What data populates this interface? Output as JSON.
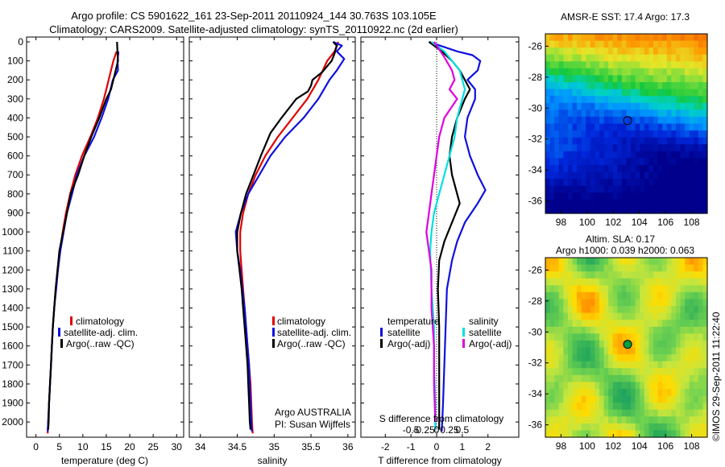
{
  "titles": {
    "line1": "Argo profile: CS 5901622_161 23-Sep-2011 20110924_144 30.763S 103.105E",
    "line2": "Climatology: CARS2009. Satellite-adjusted climatology: synTS_20110922.nc (2d earlier)"
  },
  "colors": {
    "climatology": "#e00000",
    "satellite": "#1010e0",
    "argo": "#000000",
    "sat_s_diff": "#00e0e0",
    "argo_s_diff": "#e000e0"
  },
  "depth_axis": {
    "ticks": [
      0,
      100,
      200,
      300,
      400,
      500,
      600,
      700,
      800,
      900,
      1000,
      1100,
      1200,
      1300,
      1400,
      1500,
      1600,
      1700,
      1800,
      1900,
      2000
    ],
    "ylim": [
      0,
      2080
    ]
  },
  "temperature_panel": {
    "xlabel": "temperature (deg C)",
    "xticks": [
      0,
      5,
      10,
      15,
      20,
      25,
      30
    ],
    "xlim": [
      -2,
      31.5
    ],
    "legend": [
      "climatology",
      "satellite-adj. clim.",
      "Argo(..raw -QC)"
    ]
  },
  "salinity_panel": {
    "xlabel": "salinity",
    "xticks": [
      34,
      34.5,
      35,
      35.5,
      36
    ],
    "xtick_labels": [
      "34",
      "34.5",
      "35",
      "35.5",
      "36"
    ],
    "xlim": [
      33.85,
      36.1
    ],
    "legend": [
      "climatology",
      "satellite-adj. clim.",
      "Argo(..raw -QC)"
    ],
    "credit1": "Argo AUSTRALIA",
    "credit2": "PI: Susan Wijffels"
  },
  "difference_panel": {
    "xlabel": "T difference from climatology",
    "xlabel_top": "S difference from climatology",
    "t_xticks": [
      -2,
      -1,
      0,
      1,
      2
    ],
    "t_xtick_labels": [
      "-2",
      "-1",
      "0",
      "1",
      "2"
    ],
    "s_xtick_labels": [
      "-0.5",
      "-0.25",
      "0",
      "0.25",
      "0.5"
    ],
    "xlim": [
      -2.95,
      3.2
    ],
    "legend_temperature_header": "temperature",
    "legend_salinity_header": "salinity",
    "legend_items": [
      "satellite",
      "Argo(-adj)",
      "satellite",
      "Argo(-adj)"
    ]
  },
  "sst_map": {
    "title": "AMSR-E SST: 17.4 Argo: 17.3",
    "yticks": [
      "-26",
      "-28",
      "-30",
      "-32",
      "-34",
      "-36"
    ],
    "xticks": [
      "98",
      "100",
      "102",
      "104",
      "106",
      "108"
    ],
    "float_lon": 103.1,
    "float_lat": -30.8
  },
  "sla_map": {
    "title1": "Altim. SLA: 0.17",
    "title2": "Argo h1000: 0.039 h2000: 0.063",
    "yticks": [
      "-26",
      "-28",
      "-30",
      "-32",
      "-34",
      "-36"
    ],
    "xticks": [
      "98",
      "100",
      "102",
      "104",
      "106",
      "108"
    ],
    "float_lon": 103.1,
    "float_lat": -30.8
  },
  "timestamp": "©IMOS 29-Sep-2011 11:22:40",
  "chart_data": [
    {
      "type": "line",
      "name_ref": "temperature_panel",
      "series": [
        {
          "key": "climatology",
          "points": [
            [
              17.2,
              50
            ],
            [
              16.5,
              100
            ],
            [
              15.5,
              200
            ],
            [
              14.5,
              300
            ],
            [
              13.2,
              400
            ],
            [
              11.6,
              500
            ],
            [
              9.8,
              600
            ],
            [
              8.4,
              700
            ],
            [
              7.3,
              800
            ],
            [
              6.4,
              900
            ],
            [
              5.7,
              1000
            ],
            [
              5.1,
              1100
            ],
            [
              4.6,
              1200
            ],
            [
              4.2,
              1300
            ],
            [
              3.9,
              1400
            ],
            [
              3.6,
              1500
            ],
            [
              3.4,
              1600
            ],
            [
              3.2,
              1700
            ],
            [
              3.0,
              1800
            ],
            [
              2.8,
              1900
            ],
            [
              2.6,
              2000
            ],
            [
              2.5,
              2060
            ]
          ]
        },
        {
          "key": "satellite",
          "points": [
            [
              17.6,
              50
            ],
            [
              17.4,
              100
            ],
            [
              17.5,
              150
            ],
            [
              16.4,
              200
            ],
            [
              15.4,
              300
            ],
            [
              14.0,
              400
            ],
            [
              12.4,
              500
            ],
            [
              10.3,
              600
            ],
            [
              8.7,
              700
            ],
            [
              7.7,
              800
            ],
            [
              6.6,
              900
            ],
            [
              5.9,
              1000
            ],
            [
              5.2,
              1100
            ],
            [
              4.7,
              1200
            ],
            [
              4.3,
              1300
            ],
            [
              3.9,
              1400
            ],
            [
              3.6,
              1500
            ],
            [
              3.4,
              1600
            ],
            [
              3.2,
              1700
            ],
            [
              3.0,
              1800
            ],
            [
              2.8,
              1900
            ],
            [
              2.6,
              2000
            ],
            [
              2.5,
              2050
            ]
          ]
        },
        {
          "key": "argo",
          "points": [
            [
              17.3,
              0
            ],
            [
              17.4,
              60
            ],
            [
              17.5,
              100
            ],
            [
              16.7,
              180
            ],
            [
              16.0,
              250
            ],
            [
              15.0,
              300
            ],
            [
              13.5,
              400
            ],
            [
              11.8,
              500
            ],
            [
              10.3,
              600
            ],
            [
              9.0,
              700
            ],
            [
              8.2,
              750
            ],
            [
              7.4,
              800
            ],
            [
              6.6,
              900
            ],
            [
              5.8,
              1000
            ],
            [
              5.0,
              1100
            ],
            [
              4.6,
              1200
            ],
            [
              4.2,
              1300
            ],
            [
              3.9,
              1400
            ],
            [
              3.6,
              1500
            ],
            [
              3.4,
              1600
            ],
            [
              3.2,
              1700
            ],
            [
              3.0,
              1800
            ],
            [
              2.8,
              1900
            ],
            [
              2.7,
              2000
            ],
            [
              2.6,
              2040
            ]
          ]
        }
      ]
    },
    {
      "type": "line",
      "name_ref": "salinity_panel",
      "series": [
        {
          "key": "climatology",
          "points": [
            [
              35.87,
              0
            ],
            [
              35.82,
              50
            ],
            [
              35.72,
              100
            ],
            [
              35.6,
              200
            ],
            [
              35.45,
              300
            ],
            [
              35.25,
              400
            ],
            [
              35.05,
              500
            ],
            [
              34.88,
              600
            ],
            [
              34.75,
              700
            ],
            [
              34.65,
              800
            ],
            [
              34.58,
              900
            ],
            [
              34.54,
              1000
            ],
            [
              34.54,
              1100
            ],
            [
              34.56,
              1200
            ],
            [
              34.58,
              1300
            ],
            [
              34.6,
              1400
            ],
            [
              34.62,
              1500
            ],
            [
              34.64,
              1600
            ],
            [
              34.66,
              1700
            ],
            [
              34.68,
              1800
            ],
            [
              34.69,
              1900
            ],
            [
              34.7,
              2000
            ],
            [
              34.71,
              2060
            ]
          ]
        },
        {
          "key": "satellite",
          "points": [
            [
              35.8,
              0
            ],
            [
              35.92,
              20
            ],
            [
              35.85,
              50
            ],
            [
              35.95,
              90
            ],
            [
              35.85,
              150
            ],
            [
              35.75,
              200
            ],
            [
              35.6,
              300
            ],
            [
              35.4,
              400
            ],
            [
              35.15,
              500
            ],
            [
              34.95,
              600
            ],
            [
              34.8,
              700
            ],
            [
              34.65,
              800
            ],
            [
              34.55,
              900
            ],
            [
              34.48,
              1000
            ],
            [
              34.5,
              1100
            ],
            [
              34.54,
              1200
            ],
            [
              34.57,
              1300
            ],
            [
              34.6,
              1400
            ],
            [
              34.62,
              1500
            ],
            [
              34.64,
              1600
            ],
            [
              34.66,
              1700
            ],
            [
              34.67,
              1800
            ],
            [
              34.68,
              1900
            ],
            [
              34.69,
              2000
            ],
            [
              34.7,
              2050
            ]
          ]
        },
        {
          "key": "argo",
          "points": [
            [
              35.8,
              0
            ],
            [
              35.85,
              20
            ],
            [
              35.82,
              60
            ],
            [
              35.78,
              100
            ],
            [
              35.65,
              160
            ],
            [
              35.52,
              200
            ],
            [
              35.5,
              230
            ],
            [
              35.46,
              260
            ],
            [
              35.3,
              300
            ],
            [
              35.1,
              400
            ],
            [
              34.95,
              480
            ],
            [
              34.82,
              600
            ],
            [
              34.72,
              700
            ],
            [
              34.62,
              800
            ],
            [
              34.55,
              900
            ],
            [
              34.5,
              1000
            ],
            [
              34.5,
              1100
            ],
            [
              34.53,
              1200
            ],
            [
              34.56,
              1300
            ],
            [
              34.58,
              1400
            ],
            [
              34.6,
              1500
            ],
            [
              34.62,
              1600
            ],
            [
              34.64,
              1700
            ],
            [
              34.65,
              1800
            ],
            [
              34.66,
              1900
            ],
            [
              34.67,
              2000
            ],
            [
              34.68,
              2040
            ]
          ]
        }
      ]
    },
    {
      "type": "line",
      "name_ref": "difference_panel",
      "series": [
        {
          "key": "satellite",
          "points": [
            [
              -0.3,
              0
            ],
            [
              0.8,
              50
            ],
            [
              1.4,
              70
            ],
            [
              1.7,
              100
            ],
            [
              1.6,
              150
            ],
            [
              1.2,
              200
            ],
            [
              1.5,
              250
            ],
            [
              1.5,
              300
            ],
            [
              1.2,
              400
            ],
            [
              1.1,
              500
            ],
            [
              1.3,
              600
            ],
            [
              1.6,
              700
            ],
            [
              1.9,
              780
            ],
            [
              1.6,
              850
            ],
            [
              1.1,
              950
            ],
            [
              0.8,
              1050
            ],
            [
              0.6,
              1150
            ],
            [
              0.4,
              1300
            ],
            [
              0.35,
              1500
            ],
            [
              0.3,
              1700
            ],
            [
              0.25,
              1900
            ],
            [
              0.2,
              2050
            ]
          ]
        },
        {
          "key": "argo",
          "points": [
            [
              -0.3,
              0
            ],
            [
              0.2,
              50
            ],
            [
              0.6,
              100
            ],
            [
              0.9,
              150
            ],
            [
              1.3,
              250
            ],
            [
              1.1,
              300
            ],
            [
              0.8,
              400
            ],
            [
              0.6,
              500
            ],
            [
              0.5,
              600
            ],
            [
              0.6,
              700
            ],
            [
              0.8,
              800
            ],
            [
              0.9,
              850
            ],
            [
              0.6,
              950
            ],
            [
              0.3,
              1050
            ],
            [
              0.1,
              1150
            ],
            [
              0.05,
              1300
            ],
            [
              0.1,
              1500
            ],
            [
              0.1,
              1700
            ],
            [
              0.1,
              1900
            ],
            [
              0.1,
              2040
            ]
          ]
        },
        {
          "key": "sat_s_diff",
          "points": [
            [
              -0.2,
              0
            ],
            [
              0.3,
              50
            ],
            [
              0.6,
              100
            ],
            [
              0.9,
              150
            ],
            [
              1.0,
              200
            ],
            [
              1.1,
              250
            ],
            [
              1.0,
              300
            ],
            [
              0.8,
              400
            ],
            [
              0.7,
              500
            ],
            [
              0.5,
              600
            ],
            [
              0.3,
              700
            ],
            [
              0.1,
              800
            ],
            [
              -0.1,
              900
            ],
            [
              -0.2,
              1000
            ],
            [
              -0.25,
              1100
            ],
            [
              -0.2,
              1300
            ],
            [
              -0.1,
              1500
            ],
            [
              -0.1,
              1700
            ],
            [
              -0.05,
              1900
            ],
            [
              -0.05,
              2040
            ]
          ]
        },
        {
          "key": "argo_s_diff",
          "points": [
            [
              -0.1,
              0
            ],
            [
              0.3,
              80
            ],
            [
              0.6,
              150
            ],
            [
              0.7,
              200
            ],
            [
              0.5,
              250
            ],
            [
              0.8,
              300
            ],
            [
              0.3,
              400
            ],
            [
              0.1,
              500
            ],
            [
              0.0,
              600
            ],
            [
              -0.1,
              700
            ],
            [
              -0.2,
              800
            ],
            [
              -0.3,
              900
            ],
            [
              -0.4,
              1000
            ],
            [
              -0.3,
              1100
            ],
            [
              -0.2,
              1200
            ],
            [
              -0.2,
              1400
            ],
            [
              -0.1,
              1600
            ],
            [
              -0.1,
              1800
            ],
            [
              -0.05,
              2000
            ]
          ]
        }
      ]
    }
  ]
}
